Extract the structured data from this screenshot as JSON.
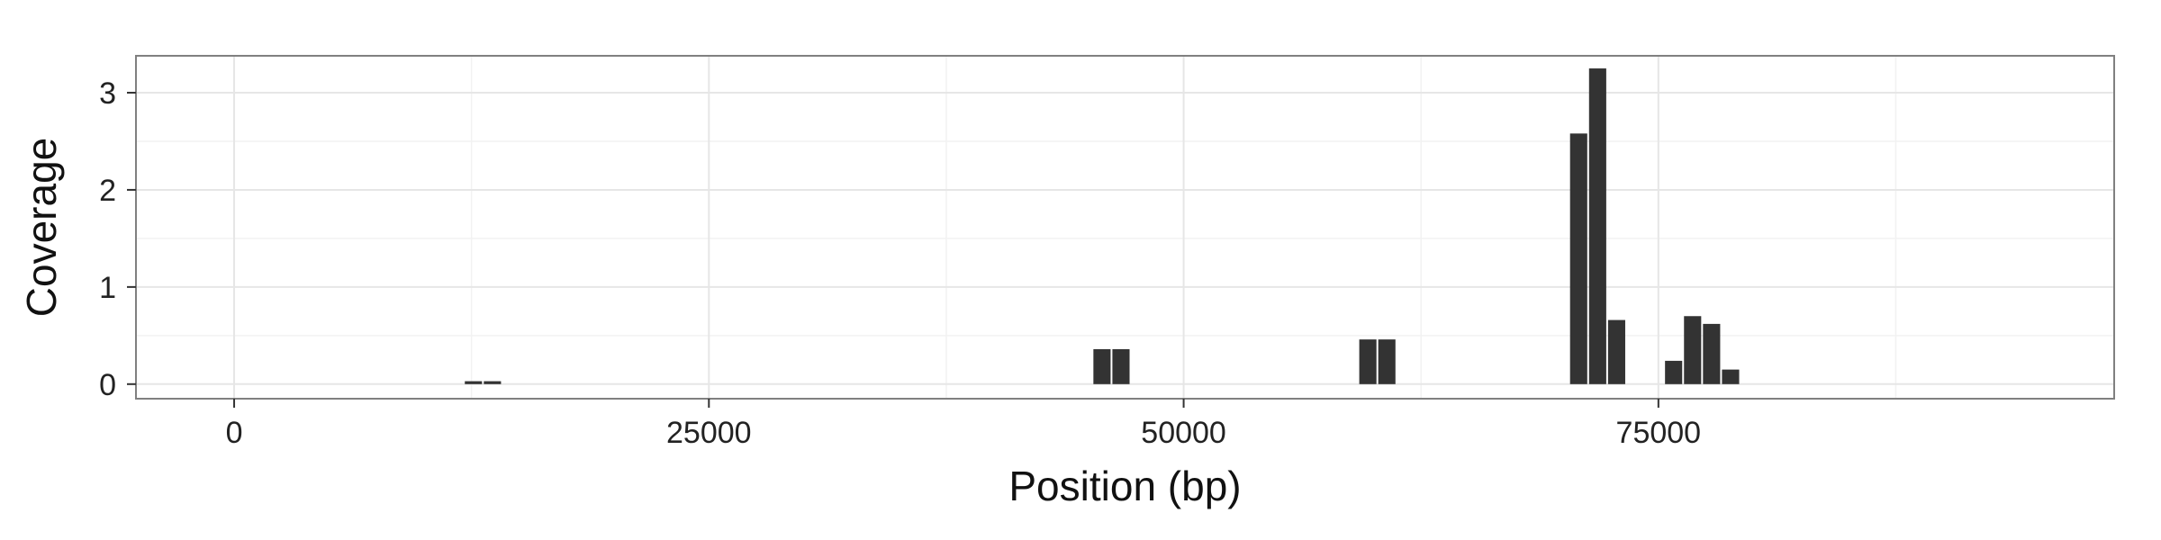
{
  "chart_data": {
    "type": "bar",
    "title": "",
    "xlabel": "Position (bp)",
    "ylabel": "Coverage",
    "xlim": [
      -5170,
      99000
    ],
    "ylim": [
      -0.15,
      3.38
    ],
    "x_ticks": [
      0,
      25000,
      50000,
      75000
    ],
    "y_ticks": [
      0,
      1,
      2,
      3
    ],
    "grid": true,
    "bar_color": "#333333",
    "bin_width": 1000,
    "bars": [
      {
        "x": 12600,
        "y": 0.03
      },
      {
        "x": 13600,
        "y": 0.03
      },
      {
        "x": 45700,
        "y": 0.36
      },
      {
        "x": 46700,
        "y": 0.36
      },
      {
        "x": 59700,
        "y": 0.46
      },
      {
        "x": 60700,
        "y": 0.46
      },
      {
        "x": 70800,
        "y": 2.58
      },
      {
        "x": 71800,
        "y": 3.25
      },
      {
        "x": 72800,
        "y": 0.66
      },
      {
        "x": 75800,
        "y": 0.24
      },
      {
        "x": 76800,
        "y": 0.7
      },
      {
        "x": 77800,
        "y": 0.62
      },
      {
        "x": 78800,
        "y": 0.15
      }
    ]
  }
}
